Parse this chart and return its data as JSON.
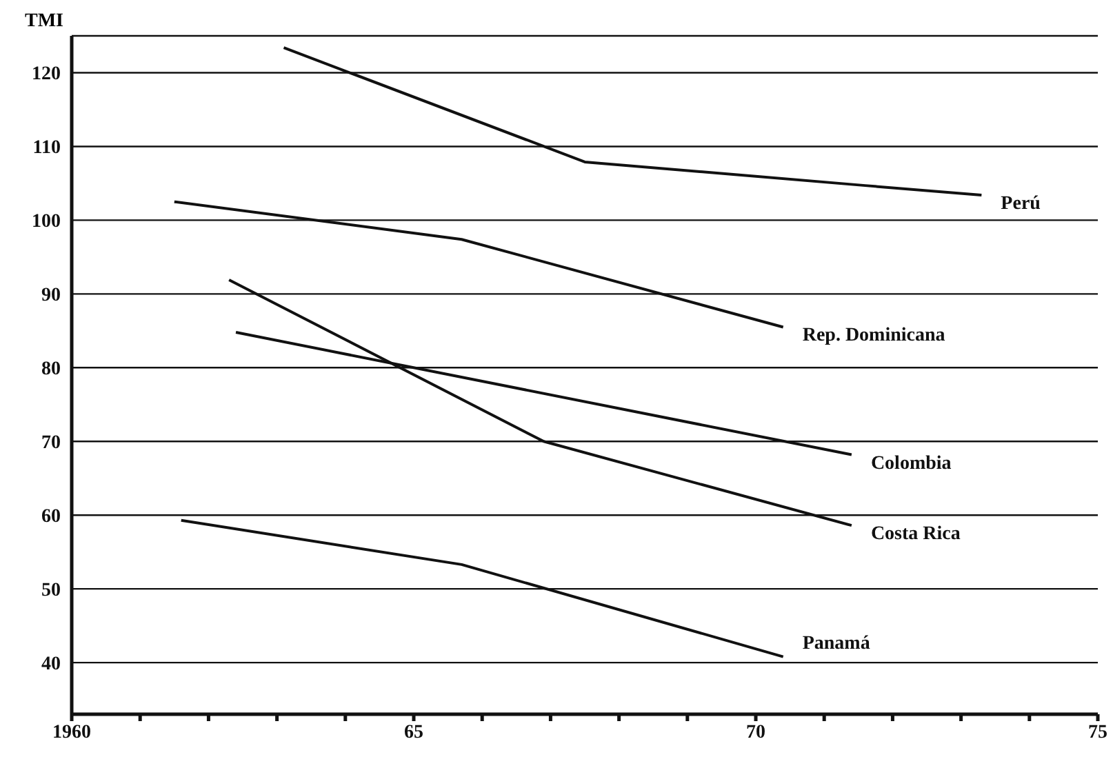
{
  "chart_data": {
    "type": "line",
    "ylabel": "TMI",
    "xlim": [
      1960,
      1975
    ],
    "ylim": [
      33,
      125
    ],
    "xticks": [
      {
        "value": 1960,
        "label": "1960"
      },
      {
        "value": 1961,
        "label": null
      },
      {
        "value": 1962,
        "label": null
      },
      {
        "value": 1963,
        "label": null
      },
      {
        "value": 1964,
        "label": null
      },
      {
        "value": 1965,
        "label": "65"
      },
      {
        "value": 1966,
        "label": null
      },
      {
        "value": 1967,
        "label": null
      },
      {
        "value": 1968,
        "label": null
      },
      {
        "value": 1969,
        "label": null
      },
      {
        "value": 1970,
        "label": "70"
      },
      {
        "value": 1971,
        "label": null
      },
      {
        "value": 1972,
        "label": null
      },
      {
        "value": 1973,
        "label": null
      },
      {
        "value": 1974,
        "label": null
      },
      {
        "value": 1975,
        "label": "75"
      }
    ],
    "yticks": [
      40,
      50,
      60,
      70,
      80,
      90,
      100,
      110,
      120
    ],
    "grid": "y",
    "marker": "none",
    "line_style": "solid",
    "series": [
      {
        "name": "Perú",
        "color": "#111111",
        "x": [
          1963.1,
          1967.5,
          1971.6,
          1973.3
        ],
        "values": [
          123.4,
          107.9,
          104.7,
          103.4
        ]
      },
      {
        "name": "Rep. Dominicana",
        "color": "#111111",
        "x": [
          1961.5,
          1965.7,
          1970.4
        ],
        "values": [
          102.5,
          97.4,
          85.5
        ]
      },
      {
        "name": "Colombia",
        "color": "#111111",
        "x": [
          1962.4,
          1971.4
        ],
        "values": [
          84.8,
          68.2
        ]
      },
      {
        "name": "Costa Rica",
        "color": "#111111",
        "x": [
          1962.3,
          1966.9,
          1971.4
        ],
        "values": [
          91.9,
          70.0,
          58.6
        ]
      },
      {
        "name": "Panamá",
        "color": "#111111",
        "x": [
          1961.6,
          1965.7,
          1970.4
        ],
        "values": [
          59.3,
          53.3,
          40.8
        ]
      }
    ]
  }
}
